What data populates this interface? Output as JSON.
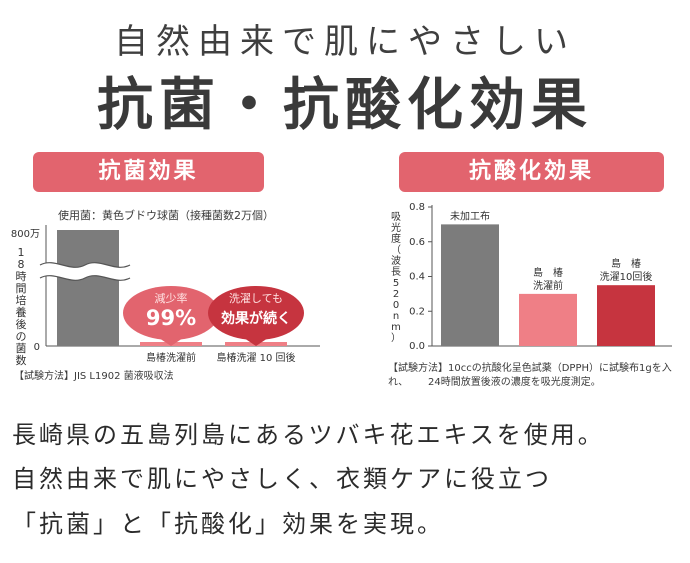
{
  "hero": {
    "subtitle": "自然由来で肌にやさしい",
    "title": "抗菌・抗酸化効果"
  },
  "colors": {
    "accent_pink": "#e2646e",
    "bar_gray": "#7c7c7c",
    "bar_pink": "#ef7f86",
    "bar_red": "#c6343f"
  },
  "left_panel": {
    "pill_label": "抗菌効果",
    "test_bacteria": "使用菌：黄色ブドウ球菌（接種菌数2万個）",
    "method_note": "【試験方法】JIS L1902 菌液吸収法",
    "callout_1": {
      "line1": "減少率",
      "line2": "99%"
    },
    "callout_2": {
      "line1": "洗濯しても",
      "line2": "効果が続く"
    }
  },
  "right_panel": {
    "pill_label": "抗酸化効果",
    "method_note_1": "【試験方法】10ccの抗酸化呈色試薬（DPPH）に試験布1gを入れ、",
    "method_note_2": "24時間放置後液の濃度を吸光度測定。"
  },
  "chart_data": [
    {
      "type": "bar",
      "ylabel": "18時間培養後の菌数",
      "y_ticks": [
        "0",
        "800万"
      ],
      "axis_break": true,
      "categories": [
        "",
        "島椿洗濯前",
        "島椿洗濯 10 回後"
      ],
      "values": [
        8000000,
        80000,
        80000
      ]
    },
    {
      "type": "bar",
      "ylabel": "吸光度（波長520nm）",
      "ylim": [
        0,
        0.8
      ],
      "y_ticks": [
        "0.0",
        "0.2",
        "0.4",
        "0.6",
        "0.8"
      ],
      "categories": [
        "未加工布",
        "島椿洗濯前",
        "島椿洗濯10回後"
      ],
      "category_lines": [
        [
          "未加工布"
        ],
        [
          "島　椿",
          "洗濯前"
        ],
        [
          "島　椿",
          "洗濯10回後"
        ]
      ],
      "values": [
        0.7,
        0.3,
        0.35
      ]
    }
  ],
  "body": {
    "line1": "長崎県の五島列島にあるツバキ花エキスを使用。",
    "line2": "自然由来で肌にやさしく、衣類ケアに役立つ",
    "line3": "「抗菌」と「抗酸化」効果を実現。"
  }
}
